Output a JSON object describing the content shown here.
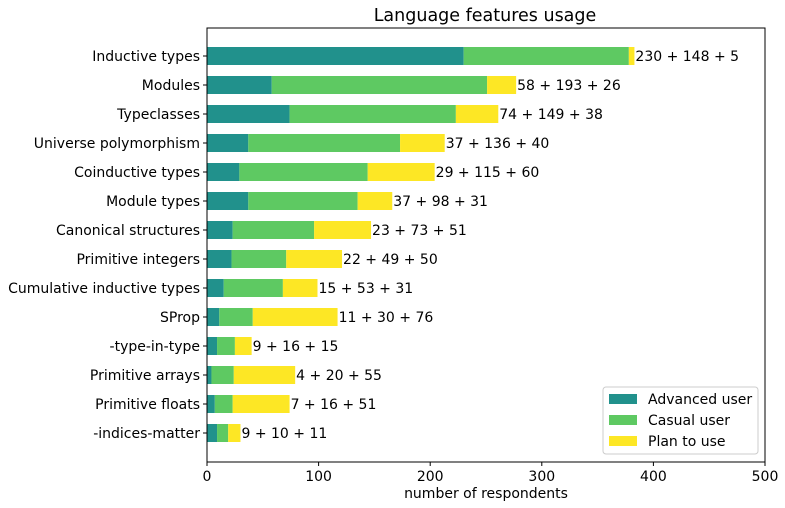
{
  "chart_data": {
    "type": "bar",
    "orientation": "horizontal",
    "stacked": true,
    "title": "Language features usage",
    "xlabel": "number of respondents",
    "ylabel": "",
    "xlim": [
      0,
      500
    ],
    "xticks": [
      0,
      100,
      200,
      300,
      400,
      500
    ],
    "grid": false,
    "legend_position": "bottom-right",
    "categories": [
      "Inductive types",
      "Modules",
      "Typeclasses",
      "Universe polymorphism",
      "Coinductive types",
      "Module types",
      "Canonical structures",
      "Primitive integers",
      "Cumulative inductive types",
      "SProp",
      "-type-in-type",
      "Primitive arrays",
      "Primitive floats",
      "-indices-matter"
    ],
    "series": [
      {
        "name": "Advanced user",
        "color": "#21918c",
        "values": [
          230,
          58,
          74,
          37,
          29,
          37,
          23,
          22,
          15,
          11,
          9,
          4,
          7,
          9
        ]
      },
      {
        "name": "Casual user",
        "color": "#5ec962",
        "values": [
          148,
          193,
          149,
          136,
          115,
          98,
          73,
          49,
          53,
          30,
          16,
          20,
          16,
          10
        ]
      },
      {
        "name": "Plan to use",
        "color": "#fde725",
        "values": [
          5,
          26,
          38,
          40,
          60,
          31,
          51,
          50,
          31,
          76,
          15,
          55,
          51,
          11
        ]
      }
    ],
    "data_labels": [
      "230 + 148 + 5",
      "58 + 193 + 26",
      "74 + 149 + 38",
      "37 + 136 + 40",
      "29 + 115 + 60",
      "37 + 98 + 31",
      "23 + 73 + 51",
      "22 + 49 + 50",
      "15 + 53 + 31",
      "11 + 30 + 76",
      "9 + 16 + 15",
      "4 + 20 + 55",
      "7 + 16 + 51",
      "9 + 10 + 11"
    ]
  }
}
